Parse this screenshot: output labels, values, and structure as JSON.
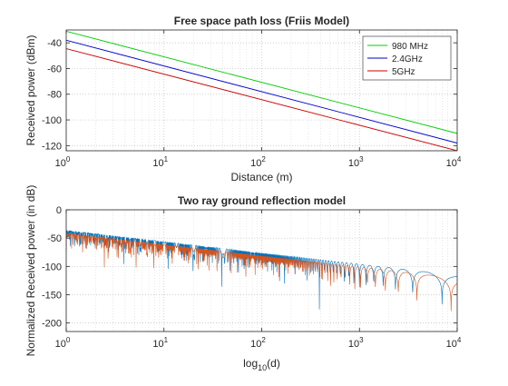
{
  "chart_data": [
    {
      "type": "line",
      "title": "Free space path loss (Friis Model)",
      "xlabel": "Distance (m)",
      "ylabel": "Received power (dBm)",
      "xscale": "log",
      "xlim": [
        1,
        10000
      ],
      "ylim": [
        -124,
        -30
      ],
      "grid": true,
      "legend_position": "top-right",
      "x_ticks": [
        1,
        10,
        100,
        1000,
        10000
      ],
      "x_tick_base": "10",
      "x_tick_exponents": [
        "0",
        "1",
        "2",
        "3",
        "4"
      ],
      "y_ticks": [
        -40,
        -60,
        -80,
        -100,
        -120
      ],
      "y_tick_labels": [
        "-40",
        "-60",
        "-80",
        "-100",
        "-120"
      ],
      "series": [
        {
          "name": "980 MHz",
          "color": "#00cc00",
          "x": [
            1,
            10000
          ],
          "y": [
            -31,
            -110.5
          ]
        },
        {
          "name": "2.4GHz",
          "color": "#0000cc",
          "x": [
            1,
            10000
          ],
          "y": [
            -38,
            -118
          ]
        },
        {
          "name": "5GHz",
          "color": "#cc0000",
          "x": [
            1,
            10000
          ],
          "y": [
            -44.5,
            -124
          ]
        }
      ]
    },
    {
      "type": "line",
      "title": "Two ray ground reflection model",
      "xlabel_prefix": "log",
      "xlabel_sub": "10",
      "xlabel_suffix": "(d)",
      "ylabel": "Normalized Received power (in dB)",
      "xscale": "log",
      "xlim": [
        1,
        10000
      ],
      "ylim": [
        -215,
        0
      ],
      "grid": true,
      "x_ticks": [
        1,
        10,
        100,
        1000,
        10000
      ],
      "x_tick_base": "10",
      "x_tick_exponents": [
        "0",
        "1",
        "2",
        "3",
        "4"
      ],
      "y_ticks": [
        0,
        -50,
        -100,
        -150,
        -200
      ],
      "y_tick_labels": [
        "0",
        "-50",
        "-100",
        "-150",
        "-200"
      ],
      "series": [
        {
          "color": "#0072bd",
          "start_db": -42,
          "slope_db_per_decade": -20,
          "null_depth_db": -210
        },
        {
          "color": "#d95319",
          "start_db": -47,
          "slope_db_per_decade": -20,
          "null_depth_db": -210
        }
      ]
    }
  ]
}
